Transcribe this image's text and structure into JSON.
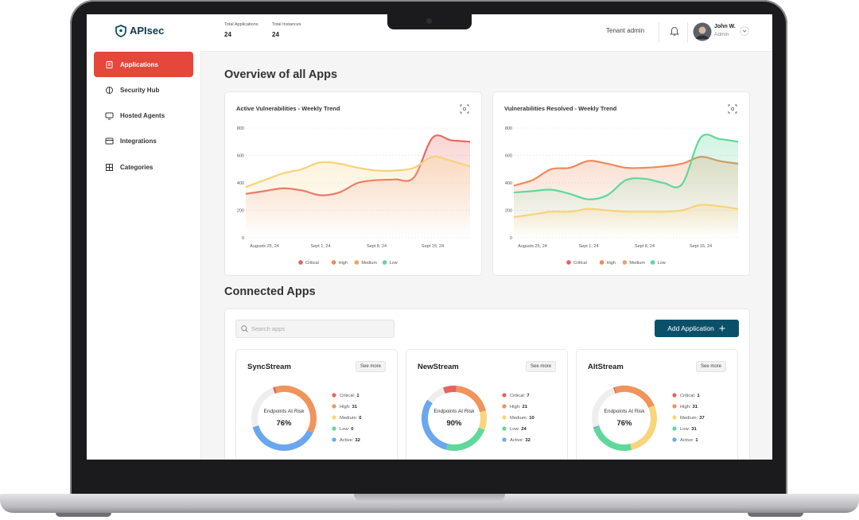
{
  "brand": "APIsec",
  "nav": [
    "Applications",
    "Security Hub",
    "Hosted Agents",
    "Integrations",
    "Categories"
  ],
  "stats": [
    {
      "label": "Total Applications",
      "value": 24
    },
    {
      "label": "Total Instances",
      "value": 24
    }
  ],
  "user": {
    "tenant": "Tenant admin",
    "name": "John W.",
    "role": "Admin"
  },
  "overview_title": "Overview of all Apps",
  "charts": [
    {
      "type": "line",
      "title": "Active Vulnerabilities - Weekly Trend",
      "x": [
        null,
        "Augusts 25, 24",
        null,
        null,
        "Sept 1, 24",
        null,
        null,
        "Sept 8, 24",
        null,
        null,
        "Sept 15, 24",
        null,
        null
      ],
      "ylim": [
        0,
        800
      ],
      "yticks": [
        0,
        200,
        400,
        600,
        800
      ],
      "legend": [
        {
          "name": "Critical",
          "color": "#e5645c"
        },
        {
          "name": "High",
          "color": "#ef8a52"
        },
        {
          "name": "Medium",
          "color": "#f0a060"
        },
        {
          "name": "Low",
          "color": "#5fd89b"
        }
      ],
      "lines": [
        {
          "color": "#e86b63",
          "values": [
            320,
            340,
            360,
            345,
            310,
            330,
            400,
            420,
            425,
            440,
            730,
            710,
            700
          ]
        },
        {
          "color": "#f7d27a",
          "values": [
            370,
            420,
            470,
            500,
            550,
            540,
            510,
            490,
            490,
            510,
            590,
            560,
            520
          ]
        }
      ]
    },
    {
      "type": "line",
      "title": "Vulnerabilities Resolved - Weekly Trend",
      "x": [
        null,
        "Augusts 25, 24",
        null,
        null,
        "Sept 1, 24",
        null,
        null,
        "Sept 8, 24",
        null,
        null,
        "Sept 15, 24",
        null,
        null
      ],
      "ylim": [
        0,
        800
      ],
      "yticks": [
        0,
        200,
        400,
        600,
        800
      ],
      "legend": [
        {
          "name": "Critical",
          "color": "#e5645c"
        },
        {
          "name": "High",
          "color": "#ef8a52"
        },
        {
          "name": "Medium",
          "color": "#f0a060"
        },
        {
          "name": "Low",
          "color": "#5fd89b"
        }
      ],
      "lines": [
        {
          "color": "#ec8a58",
          "values": [
            380,
            420,
            500,
            510,
            560,
            540,
            510,
            510,
            520,
            540,
            590,
            560,
            540
          ]
        },
        {
          "color": "#5fd89b",
          "values": [
            330,
            340,
            350,
            320,
            280,
            310,
            420,
            430,
            400,
            390,
            730,
            720,
            700
          ]
        },
        {
          "color": "#f7d27a",
          "values": [
            150,
            170,
            190,
            190,
            210,
            200,
            190,
            190,
            190,
            200,
            240,
            230,
            210
          ]
        }
      ]
    }
  ],
  "connected_title": "Connected Apps",
  "search_placeholder": "Search apps",
  "add_button": "Add Application",
  "see_more": "See more",
  "risk_caption": "Endpoints At Risk",
  "risk_labels": [
    "Critical:",
    "High:",
    "Medium:",
    "Low:",
    "Active:"
  ],
  "risk_colors": [
    "#e5645c",
    "#f0945b",
    "#f7d57a",
    "#5fd89b",
    "#6aa7ee"
  ],
  "apps": [
    {
      "name": "SyncStream",
      "risk": {
        "value": 76,
        "label": "76%"
      },
      "counts": [
        1,
        31,
        0,
        0,
        32
      ]
    },
    {
      "name": "NewStream",
      "risk": {
        "value": 90,
        "label": "90%"
      },
      "counts": [
        7,
        21,
        10,
        24,
        32
      ]
    },
    {
      "name": "AltStream",
      "risk": {
        "value": 76,
        "label": "76%"
      },
      "counts": [
        1,
        31,
        37,
        31,
        1
      ]
    }
  ]
}
